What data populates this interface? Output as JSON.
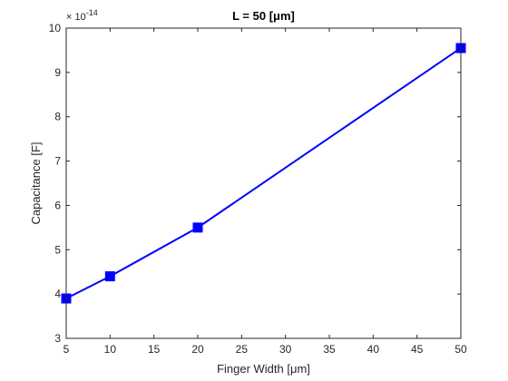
{
  "chart_data": {
    "type": "line",
    "title": "L = 50 [μm]",
    "xlabel": "Finger Width [μm]",
    "ylabel": "Capacitance [F]",
    "y_multiplier_label": "× 10",
    "y_multiplier_exponent": "-14",
    "xlim": [
      5,
      50
    ],
    "ylim": [
      3,
      10
    ],
    "x_ticks": [
      5,
      10,
      15,
      20,
      25,
      30,
      35,
      40,
      45,
      50
    ],
    "y_ticks": [
      3,
      4,
      5,
      6,
      7,
      8,
      9,
      10
    ],
    "grid": false,
    "legend": "none",
    "series": [
      {
        "x": [
          5,
          10,
          20,
          50
        ],
        "y": [
          3.9,
          4.4,
          5.5,
          9.55
        ],
        "color": "#0000ff",
        "marker": "square"
      }
    ]
  }
}
